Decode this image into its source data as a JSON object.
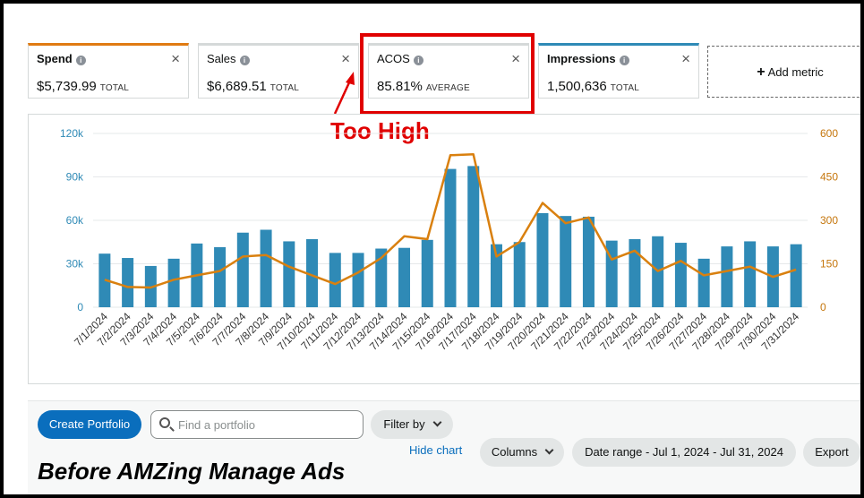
{
  "metrics": [
    {
      "title": "Spend",
      "value": "$5,739.99",
      "unit": "TOTAL",
      "color": "#e07b12"
    },
    {
      "title": "Sales",
      "value": "$6,689.51",
      "unit": "TOTAL",
      "color": "#d5d9d9"
    },
    {
      "title": "ACOS",
      "value": "85.81%",
      "unit": "AVERAGE",
      "color": "#d5d9d9"
    },
    {
      "title": "Impressions",
      "value": "1,500,636",
      "unit": "TOTAL",
      "color": "#2f8ab6"
    }
  ],
  "add_metric_label": "Add metric",
  "info_glyph": "i",
  "close_glyph": "×",
  "plus_glyph": "+",
  "annotation": "Too High",
  "caption": "Before AMZing Manage Ads",
  "toolbar": {
    "create_portfolio": "Create Portfolio",
    "search_placeholder": "Find a portfolio",
    "filter_by": "Filter by",
    "hide_chart": "Hide chart",
    "columns": "Columns",
    "date_range": "Date range - Jul 1, 2024 - Jul 31, 2024",
    "export": "Export"
  },
  "chart_data": {
    "type": "bar",
    "categories": [
      "7/1/2024",
      "7/2/2024",
      "7/3/2024",
      "7/4/2024",
      "7/5/2024",
      "7/6/2024",
      "7/7/2024",
      "7/8/2024",
      "7/9/2024",
      "7/10/2024",
      "7/11/2024",
      "7/12/2024",
      "7/13/2024",
      "7/14/2024",
      "7/15/2024",
      "7/16/2024",
      "7/17/2024",
      "7/18/2024",
      "7/19/2024",
      "7/20/2024",
      "7/21/2024",
      "7/22/2024",
      "7/23/2024",
      "7/24/2024",
      "7/25/2024",
      "7/26/2024",
      "7/27/2024",
      "7/28/2024",
      "7/29/2024",
      "7/30/2024",
      "7/31/2024"
    ],
    "series": [
      {
        "type": "bar",
        "axis": "left",
        "color": "#2f8ab6",
        "values": [
          37000,
          34000,
          28500,
          33500,
          44000,
          41500,
          51500,
          53500,
          45500,
          47000,
          37500,
          37500,
          40500,
          41000,
          46500,
          95500,
          97500,
          43500,
          45000,
          65000,
          63000,
          62500,
          46000,
          47000,
          49000,
          44500,
          33500,
          42000,
          45500,
          42000,
          43500
        ]
      },
      {
        "type": "line",
        "axis": "right",
        "color": "#d9800f",
        "values": [
          95,
          70,
          68,
          95,
          110,
          125,
          175,
          180,
          140,
          110,
          80,
          120,
          170,
          245,
          235,
          525,
          528,
          175,
          225,
          360,
          290,
          310,
          165,
          195,
          125,
          160,
          110,
          125,
          140,
          105,
          130
        ]
      }
    ],
    "y_left": {
      "min": 0,
      "max": 120000,
      "ticks": [
        "0",
        "30k",
        "60k",
        "90k",
        "120k"
      ],
      "color": "#2f8ab6"
    },
    "y_right": {
      "min": 0,
      "max": 600,
      "ticks": [
        "0",
        "150",
        "300",
        "450",
        "600"
      ],
      "color": "#c5760c"
    },
    "grid": true
  }
}
